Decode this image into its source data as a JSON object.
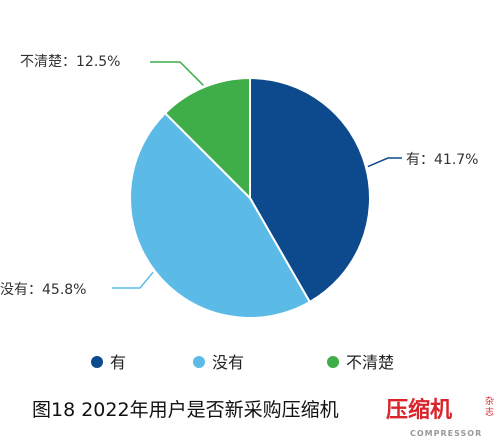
{
  "chart_data": {
    "type": "pie",
    "categories": [
      "有",
      "没有",
      "不清楚"
    ],
    "values": [
      41.7,
      45.8,
      12.5
    ],
    "colors": [
      "#0d4a8d",
      "#5bbbe6",
      "#3fae49"
    ],
    "data_labels": [
      "有：41.7%",
      "没有：45.8%",
      "不清楚：12.5%"
    ],
    "legend": {
      "position": "bottom",
      "entries": [
        "有",
        "没有",
        "不清楚"
      ]
    }
  },
  "caption": "图18 2022年用户是否新采购压缩机",
  "watermark": {
    "text": "压缩机",
    "sub": "COMPRESSOR",
    "side": "杂志",
    "color": "#d9242c"
  }
}
